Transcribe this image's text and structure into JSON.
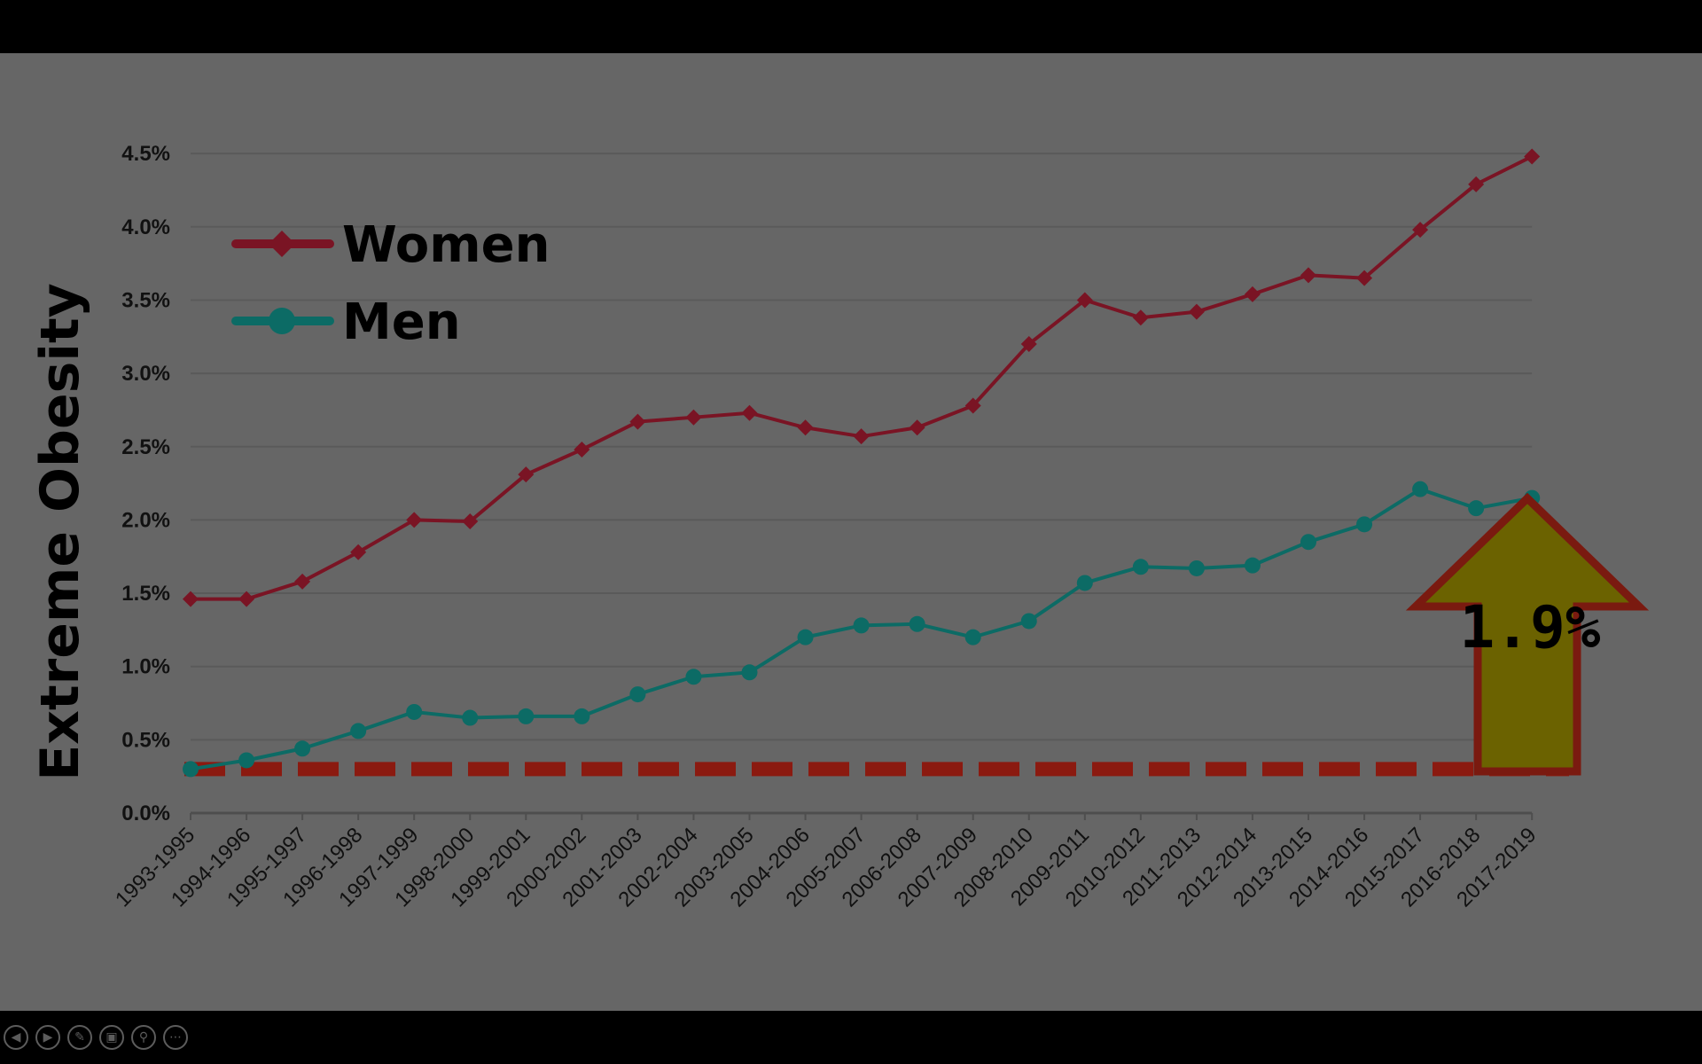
{
  "chart_data": {
    "type": "line",
    "ylabel": "Extreme Obesity",
    "xlabel": "",
    "ylim": [
      0,
      4.5
    ],
    "y_ticks": [
      "0.0%",
      "0.5%",
      "1.0%",
      "1.5%",
      "2.0%",
      "2.5%",
      "3.0%",
      "3.5%",
      "4.0%",
      "4.5%"
    ],
    "grid": true,
    "legend_placement": "top-left",
    "categories": [
      "1993-1995",
      "1994-1996",
      "1995-1997",
      "1996-1998",
      "1997-1999",
      "1998-2000",
      "1999-2001",
      "2000-2002",
      "2001-2003",
      "2002-2004",
      "2003-2005",
      "2004-2006",
      "2005-2007",
      "2006-2008",
      "2007-2009",
      "2008-2010",
      "2009-2011",
      "2010-2012",
      "2011-2013",
      "2012-2014",
      "2013-2015",
      "2014-2016",
      "2015-2017",
      "2016-2018",
      "2017-2019"
    ],
    "series": [
      {
        "name": "Women",
        "color": "#7a1424",
        "marker": "diamond",
        "values": [
          1.46,
          1.46,
          1.58,
          1.78,
          2.0,
          1.99,
          2.31,
          2.48,
          2.67,
          2.7,
          2.73,
          2.63,
          2.57,
          2.63,
          2.78,
          3.2,
          3.5,
          3.38,
          3.42,
          3.54,
          3.67,
          3.65,
          3.98,
          4.29,
          4.48
        ]
      },
      {
        "name": "Men",
        "color": "#0c6b65",
        "marker": "circle",
        "values": [
          0.3,
          0.36,
          0.44,
          0.56,
          0.69,
          0.65,
          0.66,
          0.66,
          0.81,
          0.93,
          0.96,
          1.2,
          1.28,
          1.29,
          1.2,
          1.31,
          1.57,
          1.68,
          1.67,
          1.69,
          1.85,
          1.97,
          2.21,
          2.08,
          2.15
        ]
      }
    ],
    "annotations": {
      "baseline_value": 0.3,
      "baseline_color": "#8b1a10",
      "arrow_text": "1.9%",
      "arrow_fill": "#6b6200",
      "arrow_stroke": "#7a1a10"
    }
  },
  "controls": {
    "icons": [
      "previous-icon",
      "next-icon",
      "pen-icon",
      "slides-icon",
      "zoom-icon",
      "more-icon"
    ]
  }
}
